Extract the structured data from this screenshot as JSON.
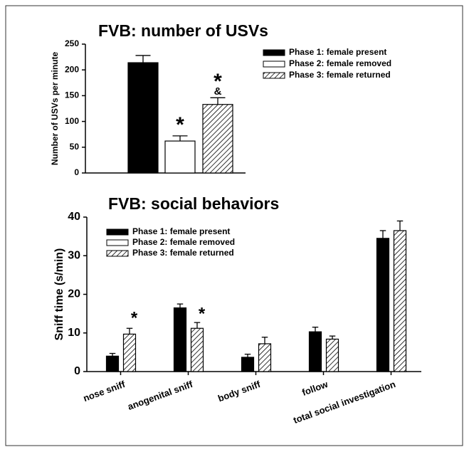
{
  "chart_data": [
    {
      "type": "bar",
      "title": "FVB: number of USVs",
      "ylabel": "Number of USVs per minute",
      "categories": [
        null
      ],
      "series": [
        {
          "name": "Phase 1: female present",
          "color": "#000000",
          "values": [
            214
          ],
          "errors": [
            14
          ]
        },
        {
          "name": "Phase 2: female removed",
          "color": "#ffffff",
          "values": [
            62
          ],
          "errors": [
            10
          ]
        },
        {
          "name": "Phase 3: female returned",
          "color": "#ffffff",
          "hatch": true,
          "values": [
            133
          ],
          "errors": [
            13
          ]
        }
      ],
      "annotations": [
        "*",
        "*",
        "&"
      ],
      "ylim": [
        0,
        250
      ],
      "yticks": [
        0,
        50,
        100,
        150,
        200,
        250
      ],
      "legend": "upper right"
    },
    {
      "type": "bar",
      "title": "FVB: social behaviors",
      "ylabel": "Sniff time (s/min)",
      "categories": [
        "nose sniff",
        "anogenital sniff",
        "body sniff",
        "follow",
        "total social investigation"
      ],
      "series": [
        {
          "name": "Phase 1: female present",
          "color": "#000000",
          "values": [
            4,
            16.5,
            3.7,
            10.3,
            34.5
          ],
          "errors": [
            0.7,
            1.0,
            0.8,
            1.2,
            2.0
          ]
        },
        {
          "name": "Phase 2: female removed",
          "color": "#ffffff",
          "values": [
            null,
            null,
            null,
            null,
            null
          ],
          "errors": [
            null,
            null,
            null,
            null,
            null
          ]
        },
        {
          "name": "Phase 3: female returned",
          "color": "#ffffff",
          "hatch": true,
          "values": [
            9.7,
            11.2,
            7.2,
            8.4,
            36.5
          ],
          "errors": [
            1.5,
            1.5,
            1.7,
            0.8,
            2.5
          ]
        }
      ],
      "annotations": [
        "*",
        "*"
      ],
      "ylim": [
        0,
        40
      ],
      "yticks": [
        0,
        10,
        20,
        30,
        40
      ],
      "legend": "upper left"
    }
  ]
}
